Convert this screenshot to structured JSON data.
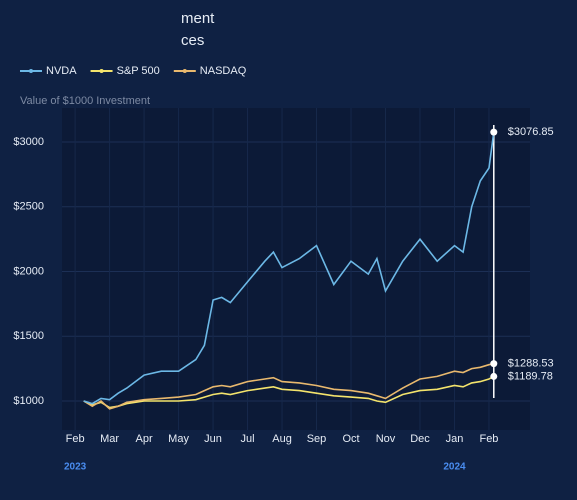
{
  "chart_data": {
    "type": "line",
    "title_lines": [
      "ment",
      "ces"
    ],
    "y_label": "Value of $1000 Investment",
    "x": [
      0.25,
      0.5,
      0.75,
      1,
      1.25,
      1.5,
      2,
      2.5,
      3,
      3.5,
      3.75,
      4,
      4.25,
      4.5,
      5,
      5.5,
      5.75,
      6,
      6.5,
      7,
      7.5,
      8,
      8.5,
      8.75,
      9,
      9.5,
      10,
      10.5,
      11,
      11.25,
      11.5,
      11.75,
      12,
      12.14
    ],
    "series": [
      {
        "name": "NVDA",
        "color": "#6cb8e6",
        "values": [
          1000,
          980,
          1020,
          1010,
          1060,
          1100,
          1200,
          1230,
          1230,
          1320,
          1430,
          1780,
          1800,
          1760,
          1920,
          2080,
          2150,
          2030,
          2100,
          2200,
          1900,
          2080,
          1980,
          2100,
          1850,
          2080,
          2250,
          2080,
          2200,
          2150,
          2500,
          2700,
          2800,
          3076.85
        ],
        "value_labels": [
          null,
          null,
          null,
          null,
          null,
          null,
          null,
          null,
          null,
          null,
          null,
          null,
          null,
          null,
          null,
          null,
          null,
          null,
          null,
          null,
          null,
          null,
          null,
          null,
          null,
          null,
          null,
          null,
          null,
          null,
          null,
          null,
          null,
          "$3076.85"
        ]
      },
      {
        "name": "S&P 500",
        "color": "#f4e46c",
        "values": [
          1000,
          970,
          990,
          950,
          960,
          980,
          1000,
          1000,
          1000,
          1010,
          1030,
          1050,
          1060,
          1050,
          1080,
          1100,
          1110,
          1090,
          1080,
          1060,
          1040,
          1030,
          1020,
          1000,
          990,
          1050,
          1080,
          1090,
          1120,
          1110,
          1140,
          1150,
          1170,
          1189.78
        ],
        "value_labels": [
          null,
          null,
          null,
          null,
          null,
          null,
          null,
          null,
          null,
          null,
          null,
          null,
          null,
          null,
          null,
          null,
          null,
          null,
          null,
          null,
          null,
          null,
          null,
          null,
          null,
          null,
          null,
          null,
          null,
          null,
          null,
          null,
          null,
          "$1189.78"
        ]
      },
      {
        "name": "NASDAQ",
        "color": "#e9b96e",
        "values": [
          1000,
          960,
          1000,
          940,
          960,
          990,
          1010,
          1020,
          1030,
          1050,
          1080,
          1110,
          1120,
          1110,
          1150,
          1170,
          1180,
          1150,
          1140,
          1120,
          1090,
          1080,
          1060,
          1040,
          1020,
          1100,
          1170,
          1190,
          1230,
          1220,
          1250,
          1260,
          1280,
          1288.53
        ],
        "value_labels": [
          null,
          null,
          null,
          null,
          null,
          null,
          null,
          null,
          null,
          null,
          null,
          null,
          null,
          null,
          null,
          null,
          null,
          null,
          null,
          null,
          null,
          null,
          null,
          null,
          null,
          null,
          null,
          null,
          null,
          null,
          null,
          null,
          null,
          "$1288.53"
        ]
      }
    ],
    "xlim": [
      -0.38,
      13.19
    ],
    "xticks": [
      {
        "value": 0,
        "label": "Feb"
      },
      {
        "value": 1,
        "label": "Mar"
      },
      {
        "value": 2,
        "label": "Apr"
      },
      {
        "value": 3,
        "label": "May"
      },
      {
        "value": 4,
        "label": "Jun"
      },
      {
        "value": 5,
        "label": "Jul"
      },
      {
        "value": 6,
        "label": "Aug"
      },
      {
        "value": 7,
        "label": "Sep"
      },
      {
        "value": 8,
        "label": "Oct"
      },
      {
        "value": 9,
        "label": "Nov"
      },
      {
        "value": 10,
        "label": "Dec"
      },
      {
        "value": 11,
        "label": "Jan"
      },
      {
        "value": 12,
        "label": "Feb"
      }
    ],
    "year_labels": [
      {
        "value": 0,
        "label": "2023"
      },
      {
        "value": 11,
        "label": "2024"
      }
    ],
    "ylim": [
      776,
      3263
    ],
    "yticks": [
      {
        "value": 1000,
        "label": "$1000"
      },
      {
        "value": 1500,
        "label": "$1500"
      },
      {
        "value": 2000,
        "label": "$2000"
      },
      {
        "value": 2500,
        "label": "$2500"
      },
      {
        "value": 3000,
        "label": "$3000"
      }
    ],
    "grid": true
  }
}
